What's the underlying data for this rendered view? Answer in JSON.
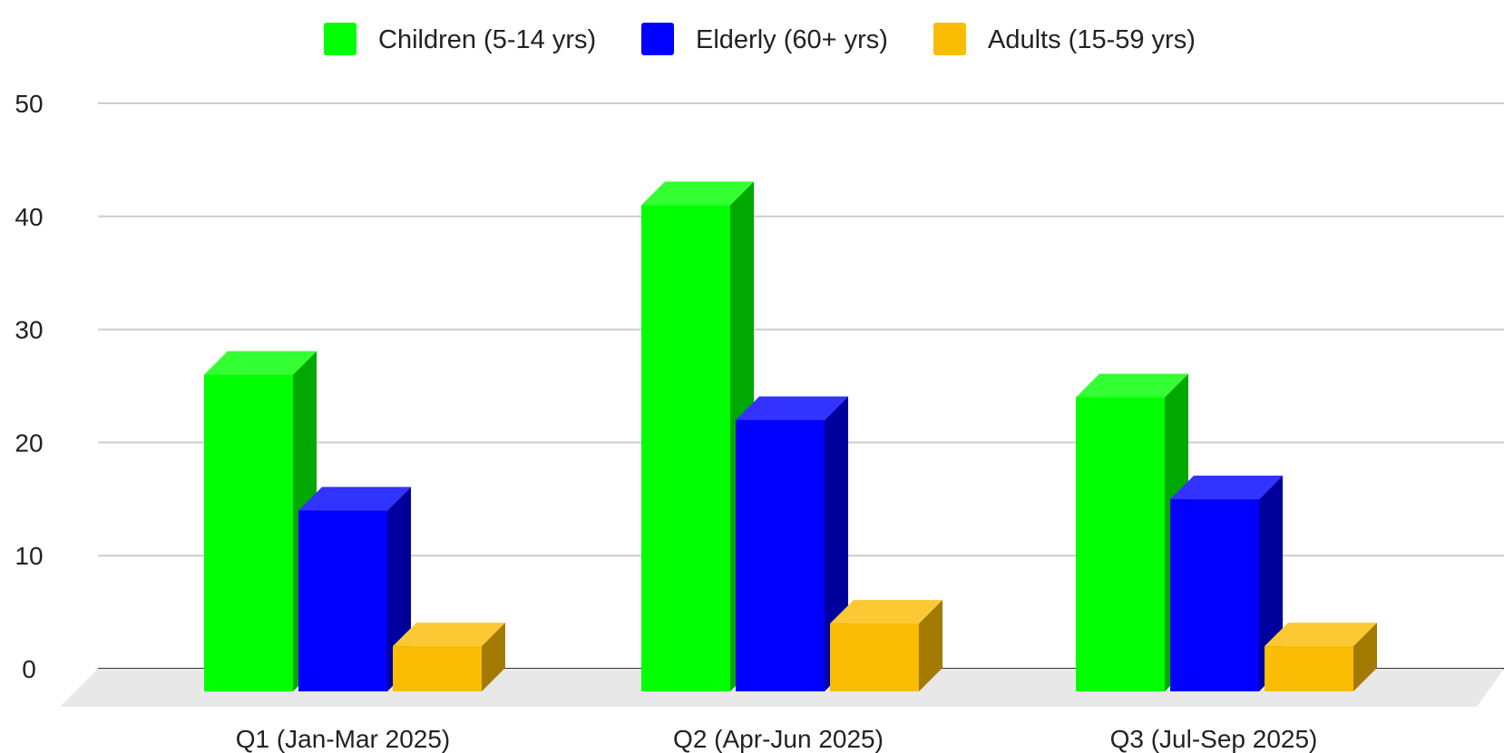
{
  "chart_data": {
    "type": "bar",
    "style": "3d",
    "title": "",
    "xlabel": "",
    "ylabel": "",
    "categories": [
      "Q1 (Jan-Mar 2025)",
      "Q2 (Apr-Jun 2025)",
      "Q3 (Jul-Sep 2025)"
    ],
    "series": [
      {
        "name": "Children (5-14 yrs)",
        "values": [
          28,
          43,
          26
        ],
        "color": "#00ff00",
        "side_color": "#00a800",
        "top_color": "#33ff33"
      },
      {
        "name": "Elderly (60+ yrs)",
        "values": [
          16,
          24,
          17
        ],
        "color": "#0000ff",
        "side_color": "#00009c",
        "top_color": "#3333ff"
      },
      {
        "name": "Adults (15-59 yrs)",
        "values": [
          4,
          6,
          4
        ],
        "color": "#fbbc04",
        "side_color": "#a37a00",
        "top_color": "#fcc934"
      }
    ],
    "ylim": [
      0,
      50
    ],
    "yticks": [
      0,
      10,
      20,
      30,
      40,
      50
    ],
    "grid": true,
    "legend_position": "top-center"
  }
}
